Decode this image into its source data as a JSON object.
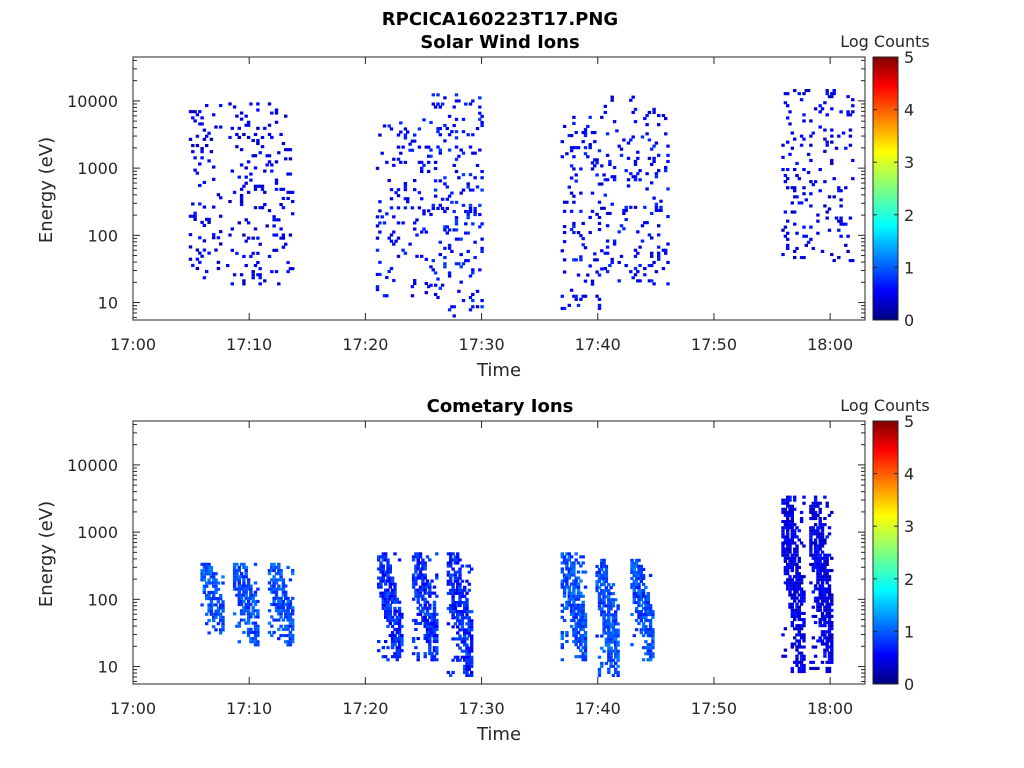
{
  "figure_title": "RPCICA160223T17.PNG",
  "chart_data": [
    {
      "type": "heatmap",
      "title": "Solar Wind Ions",
      "xlabel": "Time",
      "ylabel": "Energy (eV)",
      "x_ticks": [
        "17:00",
        "17:10",
        "17:20",
        "17:30",
        "17:40",
        "17:50",
        "18:00"
      ],
      "x_range_min": [
        0,
        63
      ],
      "y_scale": "log",
      "y_ticks": [
        10,
        100,
        1000,
        10000
      ],
      "y_tick_labels": [
        "10",
        "100",
        "1000",
        "10000"
      ],
      "y_range": [
        5.5,
        45000
      ],
      "colorbar": {
        "label": "Log Counts",
        "range": [
          0,
          5
        ],
        "ticks": [
          "0",
          "1",
          "2",
          "3",
          "4",
          "5"
        ],
        "colormap": "jet"
      },
      "bursts": [
        {
          "t_start": 4.8,
          "t_end": 7.5,
          "e_min": 20,
          "e_max": 9000,
          "typical_log_counts": 0.5
        },
        {
          "t_start": 8.0,
          "t_end": 13.8,
          "e_min": 18,
          "e_max": 9500,
          "typical_log_counts": 0.5
        },
        {
          "t_start": 20.9,
          "t_end": 25.5,
          "e_min": 12,
          "e_max": 5500,
          "typical_log_counts": 0.6
        },
        {
          "t_start": 25.5,
          "t_end": 30.0,
          "e_min": 6,
          "e_max": 13000,
          "typical_log_counts": 0.7
        },
        {
          "t_start": 36.8,
          "t_end": 40.5,
          "e_min": 7,
          "e_max": 6000,
          "typical_log_counts": 0.6
        },
        {
          "t_start": 40.5,
          "t_end": 46.0,
          "e_min": 18,
          "e_max": 12000,
          "typical_log_counts": 0.6
        },
        {
          "t_start": 55.8,
          "t_end": 62.0,
          "e_min": 40,
          "e_max": 15000,
          "typical_log_counts": 0.5
        }
      ]
    },
    {
      "type": "heatmap",
      "title": "Cometary Ions",
      "xlabel": "Time",
      "ylabel": "Energy (eV)",
      "x_ticks": [
        "17:00",
        "17:10",
        "17:20",
        "17:30",
        "17:40",
        "17:50",
        "18:00"
      ],
      "x_range_min": [
        0,
        63
      ],
      "y_scale": "log",
      "y_ticks": [
        10,
        100,
        1000,
        10000
      ],
      "y_tick_labels": [
        "10",
        "100",
        "1000",
        "10000"
      ],
      "y_range": [
        5.5,
        45000
      ],
      "colorbar": {
        "label": "Log Counts",
        "range": [
          0,
          5
        ],
        "ticks": [
          "0",
          "1",
          "2",
          "3",
          "4",
          "5"
        ],
        "colormap": "jet"
      },
      "bursts": [
        {
          "t_start": 5.8,
          "t_end": 7.8,
          "e_min": 30,
          "e_max": 350,
          "typical_log_counts": 1.0
        },
        {
          "t_start": 8.6,
          "t_end": 10.8,
          "e_min": 20,
          "e_max": 350,
          "typical_log_counts": 1.0
        },
        {
          "t_start": 11.6,
          "t_end": 13.8,
          "e_min": 20,
          "e_max": 350,
          "typical_log_counts": 1.0
        },
        {
          "t_start": 21.0,
          "t_end": 23.2,
          "e_min": 12,
          "e_max": 500,
          "typical_log_counts": 0.8
        },
        {
          "t_start": 24.0,
          "t_end": 26.2,
          "e_min": 12,
          "e_max": 500,
          "typical_log_counts": 0.8
        },
        {
          "t_start": 27.0,
          "t_end": 29.2,
          "e_min": 7,
          "e_max": 500,
          "typical_log_counts": 0.8
        },
        {
          "t_start": 36.8,
          "t_end": 38.9,
          "e_min": 12,
          "e_max": 500,
          "typical_log_counts": 1.0
        },
        {
          "t_start": 39.8,
          "t_end": 41.8,
          "e_min": 7,
          "e_max": 400,
          "typical_log_counts": 1.0
        },
        {
          "t_start": 42.8,
          "t_end": 44.8,
          "e_min": 12,
          "e_max": 400,
          "typical_log_counts": 1.0
        },
        {
          "t_start": 55.8,
          "t_end": 57.8,
          "e_min": 8,
          "e_max": 3500,
          "typical_log_counts": 0.5
        },
        {
          "t_start": 58.2,
          "t_end": 60.2,
          "e_min": 8,
          "e_max": 3500,
          "typical_log_counts": 0.5
        }
      ]
    }
  ]
}
